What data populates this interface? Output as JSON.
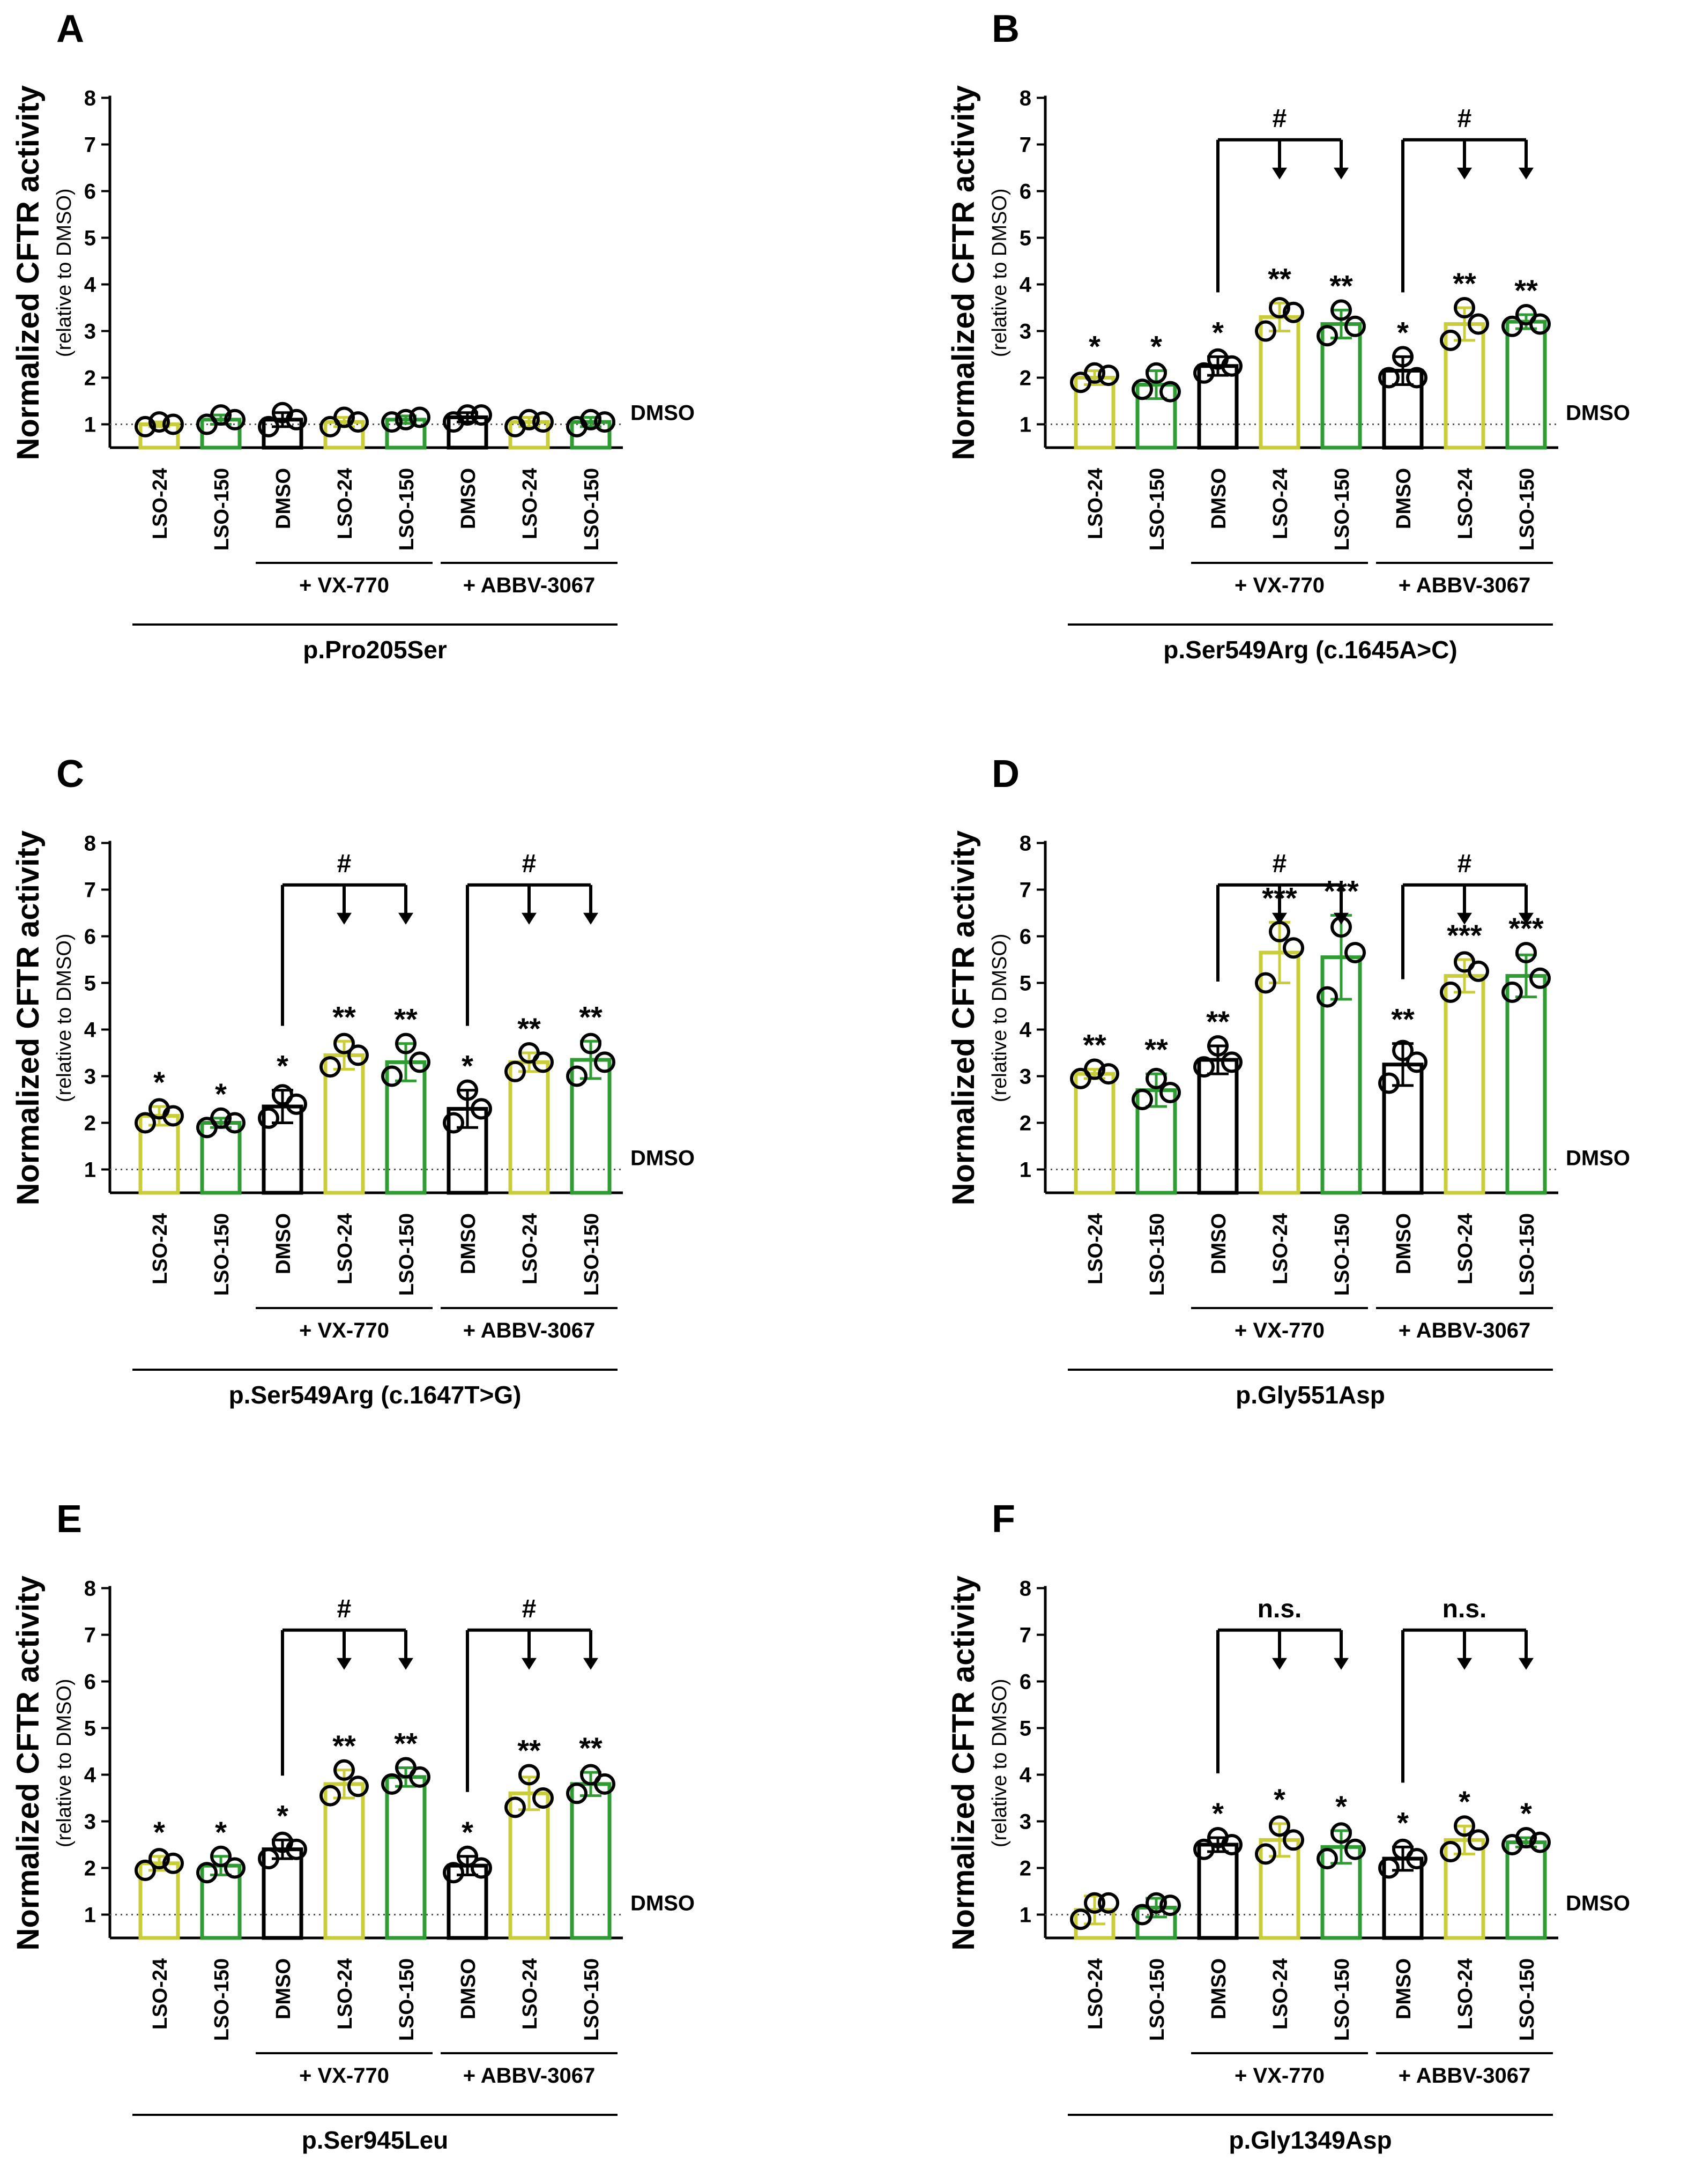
{
  "colors": {
    "dmso": "#000000",
    "lso24": "#c9cd3a",
    "lso150": "#2e9c33"
  },
  "chart_data": [
    {
      "type": "bar",
      "panel": "A",
      "ylabel": "Normalized CFTR activity",
      "ylabel_sub": "(relative to DMSO)",
      "ylim": [
        0.5,
        8
      ],
      "yticks": [
        "1",
        "2",
        "3",
        "4",
        "5",
        "6",
        "7",
        "8"
      ],
      "reference_line": {
        "value": 1,
        "label": "DMSO"
      },
      "categories": [
        "LSO-24",
        "LSO-150",
        "DMSO",
        "LSO-24",
        "LSO-150",
        "DMSO",
        "LSO-24",
        "LSO-150"
      ],
      "bar_colors": [
        "lso24",
        "lso150",
        "dmso",
        "lso24",
        "lso150",
        "dmso",
        "lso24",
        "lso150"
      ],
      "values": [
        1.0,
        1.1,
        1.1,
        1.05,
        1.1,
        1.15,
        1.05,
        1.05
      ],
      "errors": [
        0.05,
        0.1,
        0.15,
        0.1,
        0.08,
        0.1,
        0.1,
        0.1
      ],
      "points": [
        [
          0.95,
          1.05,
          1.0
        ],
        [
          1.0,
          1.2,
          1.1
        ],
        [
          0.95,
          1.25,
          1.1
        ],
        [
          0.95,
          1.15,
          1.05
        ],
        [
          1.05,
          1.1,
          1.15
        ],
        [
          1.05,
          1.2,
          1.2
        ],
        [
          0.95,
          1.1,
          1.05
        ],
        [
          0.95,
          1.1,
          1.05
        ]
      ],
      "stars": [
        "",
        "",
        "",
        "",
        "",
        "",
        "",
        ""
      ],
      "groups": [
        "+ VX-770",
        "+ ABBV-3067"
      ],
      "mutation": "p.Pro205Ser",
      "brackets": []
    },
    {
      "type": "bar",
      "panel": "B",
      "ylabel": "Normalized CFTR activity",
      "ylabel_sub": "(relative to DMSO)",
      "ylim": [
        0.5,
        8
      ],
      "yticks": [
        "1",
        "2",
        "3",
        "4",
        "5",
        "6",
        "7",
        "8"
      ],
      "reference_line": {
        "value": 1,
        "label": "DMSO"
      },
      "categories": [
        "LSO-24",
        "LSO-150",
        "DMSO",
        "LSO-24",
        "LSO-150",
        "DMSO",
        "LSO-24",
        "LSO-150"
      ],
      "bar_colors": [
        "lso24",
        "lso150",
        "dmso",
        "lso24",
        "lso150",
        "dmso",
        "lso24",
        "lso150"
      ],
      "values": [
        2.0,
        1.85,
        2.25,
        3.3,
        3.15,
        2.15,
        3.15,
        3.2
      ],
      "errors": [
        0.15,
        0.3,
        0.2,
        0.3,
        0.3,
        0.3,
        0.35,
        0.15
      ],
      "points": [
        [
          1.9,
          2.1,
          2.05
        ],
        [
          1.75,
          2.1,
          1.7
        ],
        [
          2.1,
          2.4,
          2.25
        ],
        [
          3.0,
          3.5,
          3.4
        ],
        [
          2.9,
          3.45,
          3.1
        ],
        [
          2.0,
          2.45,
          2.0
        ],
        [
          2.8,
          3.5,
          3.15
        ],
        [
          3.1,
          3.35,
          3.15
        ]
      ],
      "stars": [
        "*",
        "*",
        "*",
        "**",
        "**",
        "*",
        "**",
        "**"
      ],
      "groups": [
        "+ VX-770",
        "+ ABBV-3067"
      ],
      "mutation": "p.Ser549Arg (c.1645A>C)",
      "brackets": [
        {
          "from": 2,
          "to": [
            3,
            4
          ],
          "label": "#"
        },
        {
          "from": 5,
          "to": [
            6,
            7
          ],
          "label": "#"
        }
      ]
    },
    {
      "type": "bar",
      "panel": "C",
      "ylabel": "Normalized CFTR activity",
      "ylabel_sub": "(relative to DMSO)",
      "ylim": [
        0.5,
        8
      ],
      "yticks": [
        "1",
        "2",
        "3",
        "4",
        "5",
        "6",
        "7",
        "8"
      ],
      "reference_line": {
        "value": 1,
        "label": "DMSO"
      },
      "categories": [
        "LSO-24",
        "LSO-150",
        "DMSO",
        "LSO-24",
        "LSO-150",
        "DMSO",
        "LSO-24",
        "LSO-150"
      ],
      "bar_colors": [
        "lso24",
        "lso150",
        "dmso",
        "lso24",
        "lso150",
        "dmso",
        "lso24",
        "lso150"
      ],
      "values": [
        2.15,
        2.0,
        2.35,
        3.45,
        3.3,
        2.3,
        3.3,
        3.35
      ],
      "errors": [
        0.2,
        0.1,
        0.35,
        0.3,
        0.4,
        0.4,
        0.2,
        0.4
      ],
      "points": [
        [
          2.0,
          2.3,
          2.15
        ],
        [
          1.9,
          2.1,
          2.0
        ],
        [
          2.1,
          2.6,
          2.4
        ],
        [
          3.2,
          3.7,
          3.45
        ],
        [
          3.0,
          3.7,
          3.3
        ],
        [
          2.0,
          2.7,
          2.3
        ],
        [
          3.1,
          3.5,
          3.3
        ],
        [
          3.0,
          3.7,
          3.3
        ]
      ],
      "stars": [
        "*",
        "*",
        "*",
        "**",
        "**",
        "*",
        "**",
        "**"
      ],
      "groups": [
        "+ VX-770",
        "+ ABBV-3067"
      ],
      "mutation": "p.Ser549Arg (c.1647T>G)",
      "brackets": [
        {
          "from": 2,
          "to": [
            3,
            4
          ],
          "label": "#"
        },
        {
          "from": 5,
          "to": [
            6,
            7
          ],
          "label": "#"
        }
      ]
    },
    {
      "type": "bar",
      "panel": "D",
      "ylabel": "Normalized CFTR activity",
      "ylabel_sub": "(relative to DMSO)",
      "ylim": [
        0.5,
        8
      ],
      "yticks": [
        "1",
        "2",
        "3",
        "4",
        "5",
        "6",
        "7",
        "8"
      ],
      "reference_line": {
        "value": 1,
        "label": "DMSO"
      },
      "categories": [
        "LSO-24",
        "LSO-150",
        "DMSO",
        "LSO-24",
        "LSO-150",
        "DMSO",
        "LSO-24",
        "LSO-150"
      ],
      "bar_colors": [
        "lso24",
        "lso150",
        "dmso",
        "lso24",
        "lso150",
        "dmso",
        "lso24",
        "lso150"
      ],
      "values": [
        3.05,
        2.7,
        3.35,
        5.65,
        5.55,
        3.25,
        5.15,
        5.15
      ],
      "errors": [
        0.1,
        0.35,
        0.3,
        0.65,
        0.9,
        0.45,
        0.35,
        0.45
      ],
      "points": [
        [
          2.95,
          3.15,
          3.05
        ],
        [
          2.5,
          2.95,
          2.65
        ],
        [
          3.2,
          3.65,
          3.3
        ],
        [
          5.0,
          6.1,
          5.75
        ],
        [
          4.7,
          6.2,
          5.65
        ],
        [
          2.85,
          3.55,
          3.3
        ],
        [
          4.8,
          5.45,
          5.25
        ],
        [
          4.8,
          5.65,
          5.1
        ]
      ],
      "stars": [
        "**",
        "**",
        "**",
        "***",
        "***",
        "**",
        "***",
        "***"
      ],
      "groups": [
        "+ VX-770",
        "+ ABBV-3067"
      ],
      "mutation": "p.Gly551Asp",
      "brackets": [
        {
          "from": 2,
          "to": [
            3,
            4
          ],
          "label": "#"
        },
        {
          "from": 5,
          "to": [
            6,
            7
          ],
          "label": "#"
        }
      ]
    },
    {
      "type": "bar",
      "panel": "E",
      "ylabel": "Normalized CFTR activity",
      "ylabel_sub": "(relative to DMSO)",
      "ylim": [
        0.5,
        8
      ],
      "yticks": [
        "1",
        "2",
        "3",
        "4",
        "5",
        "6",
        "7",
        "8"
      ],
      "reference_line": {
        "value": 1,
        "label": "DMSO"
      },
      "categories": [
        "LSO-24",
        "LSO-150",
        "DMSO",
        "LSO-24",
        "LSO-150",
        "DMSO",
        "LSO-24",
        "LSO-150"
      ],
      "bar_colors": [
        "lso24",
        "lso150",
        "dmso",
        "lso24",
        "lso150",
        "dmso",
        "lso24",
        "lso150"
      ],
      "values": [
        2.1,
        2.05,
        2.4,
        3.8,
        3.95,
        2.05,
        3.6,
        3.8
      ],
      "errors": [
        0.15,
        0.2,
        0.2,
        0.3,
        0.2,
        0.2,
        0.35,
        0.25
      ],
      "points": [
        [
          1.95,
          2.2,
          2.1
        ],
        [
          1.9,
          2.25,
          2.0
        ],
        [
          2.2,
          2.55,
          2.4
        ],
        [
          3.55,
          4.1,
          3.75
        ],
        [
          3.8,
          4.15,
          3.95
        ],
        [
          1.9,
          2.25,
          2.0
        ],
        [
          3.3,
          4.0,
          3.5
        ],
        [
          3.6,
          4.0,
          3.8
        ]
      ],
      "stars": [
        "*",
        "*",
        "*",
        "**",
        "**",
        "*",
        "**",
        "**"
      ],
      "groups": [
        "+ VX-770",
        "+ ABBV-3067"
      ],
      "mutation": "p.Ser945Leu",
      "brackets": [
        {
          "from": 2,
          "to": [
            3,
            4
          ],
          "label": "#"
        },
        {
          "from": 5,
          "to": [
            6,
            7
          ],
          "label": "#"
        }
      ]
    },
    {
      "type": "bar",
      "panel": "F",
      "ylabel": "Normalized CFTR activity",
      "ylabel_sub": "(relative to DMSO)",
      "ylim": [
        0.5,
        8
      ],
      "yticks": [
        "1",
        "2",
        "3",
        "4",
        "5",
        "6",
        "7",
        "8"
      ],
      "reference_line": {
        "value": 1,
        "label": "DMSO"
      },
      "categories": [
        "LSO-24",
        "LSO-150",
        "DMSO",
        "LSO-24",
        "LSO-150",
        "DMSO",
        "LSO-24",
        "LSO-150"
      ],
      "bar_colors": [
        "lso24",
        "lso150",
        "dmso",
        "lso24",
        "lso150",
        "dmso",
        "lso24",
        "lso150"
      ],
      "values": [
        1.1,
        1.15,
        2.5,
        2.6,
        2.45,
        2.2,
        2.6,
        2.55
      ],
      "errors": [
        0.3,
        0.2,
        0.15,
        0.35,
        0.35,
        0.25,
        0.3,
        0.1
      ],
      "points": [
        [
          0.9,
          1.25,
          1.25
        ],
        [
          1.0,
          1.25,
          1.2
        ],
        [
          2.4,
          2.65,
          2.5
        ],
        [
          2.3,
          2.9,
          2.6
        ],
        [
          2.2,
          2.75,
          2.4
        ],
        [
          2.0,
          2.4,
          2.2
        ],
        [
          2.35,
          2.9,
          2.6
        ],
        [
          2.5,
          2.65,
          2.55
        ]
      ],
      "stars": [
        "",
        "",
        "*",
        "*",
        "*",
        "*",
        "*",
        "*"
      ],
      "groups": [
        "+ VX-770",
        "+ ABBV-3067"
      ],
      "mutation": "p.Gly1349Asp",
      "brackets": [
        {
          "from": 2,
          "to": [
            3,
            4
          ],
          "label": "n.s."
        },
        {
          "from": 5,
          "to": [
            6,
            7
          ],
          "label": "n.s."
        }
      ]
    }
  ]
}
